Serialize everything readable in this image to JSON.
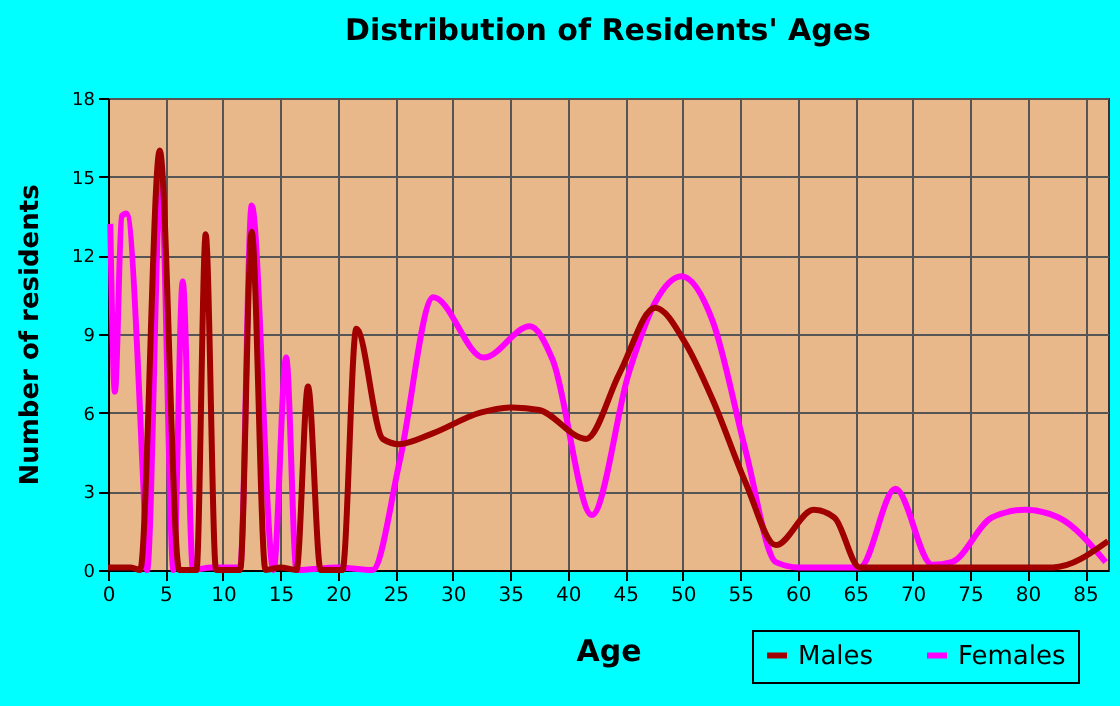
{
  "chart_data": {
    "type": "line",
    "title": "Distribution of Residents' Ages",
    "xlabel": "Age",
    "ylabel": "Number of residents",
    "xlim": [
      0,
      87
    ],
    "xticks": [
      0,
      5,
      10,
      15,
      20,
      25,
      30,
      35,
      40,
      45,
      50,
      55,
      60,
      65,
      70,
      75,
      80,
      85
    ],
    "ylim": [
      0,
      18
    ],
    "yticks": [
      0,
      3,
      6,
      9,
      12,
      15,
      18
    ],
    "grid": true,
    "legend": "bottom right",
    "marker": "none",
    "line_style": "solid",
    "series": [
      {
        "name": "Males",
        "color": "#a00000",
        "x": [
          0,
          2,
          2.8,
          4.5,
          6.2,
          7.7,
          8.5,
          9.4,
          11.5,
          12.5,
          13.7,
          15,
          16.4,
          17.4,
          18.5,
          20.4,
          21.6,
          23.9,
          25.3,
          28.2,
          32.4,
          35.2,
          37.5,
          41.6,
          44.5,
          47.6,
          50.3,
          52.6,
          55.5,
          58.1,
          61.4,
          63.2,
          65.4,
          70,
          75,
          82.2,
          87
        ],
        "values": [
          0.1,
          0.1,
          0,
          16,
          0,
          0,
          12.8,
          0,
          0,
          12.9,
          0,
          0.1,
          0,
          7,
          0,
          0,
          9.2,
          5,
          4.8,
          5.2,
          6,
          6.2,
          6.1,
          5,
          7.5,
          10,
          8.6,
          6.5,
          3.3,
          0.95,
          2.3,
          2,
          0.1,
          0.1,
          0.1,
          0.1,
          1.1
        ]
      },
      {
        "name": "Females",
        "color": "#ff00ff",
        "x": [
          0.2,
          0.6,
          1.2,
          1.6,
          3.1,
          3.4,
          4.6,
          5.7,
          6.5,
          7.4,
          9,
          11.5,
          12.5,
          14.4,
          15.5,
          16.4,
          20,
          23,
          25.4,
          28.3,
          32.7,
          36.7,
          38.7,
          42.1,
          45.3,
          47.6,
          49.9,
          52.6,
          55.5,
          58.1,
          60.1,
          63,
          65.4,
          68.5,
          71.7,
          73.4,
          76.9,
          79.8,
          82.7,
          86.8
        ],
        "values": [
          13.2,
          6.8,
          13.5,
          13.6,
          3,
          0,
          15,
          0,
          11,
          0,
          0.1,
          0.1,
          13.9,
          0,
          8.1,
          0,
          0.1,
          0,
          4.2,
          10.4,
          8.1,
          9.3,
          8,
          2.1,
          7.5,
          10.2,
          11.2,
          9.5,
          4.5,
          0.3,
          0.1,
          0.1,
          0.1,
          3.1,
          0.2,
          0.3,
          2,
          2.3,
          2,
          0.3
        ]
      }
    ]
  }
}
